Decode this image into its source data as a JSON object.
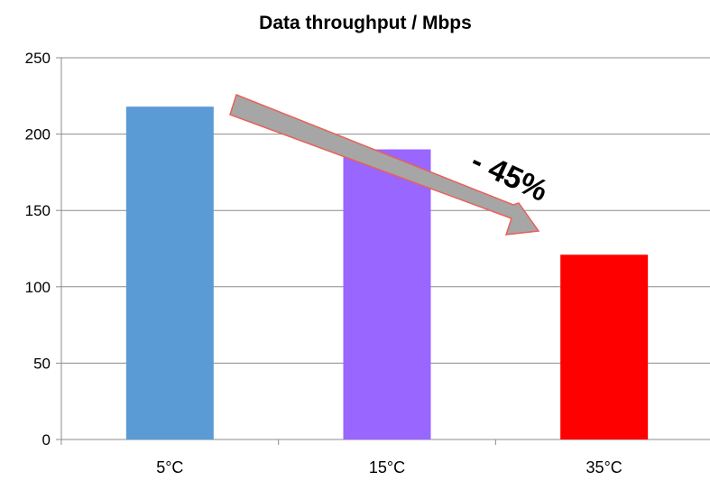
{
  "chart_data": {
    "type": "bar",
    "title": "Data throughput / Mbps",
    "xlabel": "",
    "ylabel": "",
    "categories": [
      "5°C",
      "15°C",
      "35°C"
    ],
    "values": [
      218,
      190,
      121
    ],
    "ylim": [
      0,
      250
    ],
    "yticks": [
      0,
      50,
      100,
      150,
      200,
      250
    ],
    "ytick_labels": [
      "0",
      "50",
      "100",
      "150",
      "200",
      "250"
    ],
    "grid": true,
    "legend": "none",
    "colors": [
      "#5B9BD5",
      "#9966FF",
      "#FF0000"
    ],
    "annotations": [
      {
        "text": "- 45%",
        "arrow_from_category": "5°C",
        "arrow_to_category": "35°C",
        "arrow_color": "#A6A6A6",
        "arrow_border_color": "#E8615A"
      }
    ]
  }
}
